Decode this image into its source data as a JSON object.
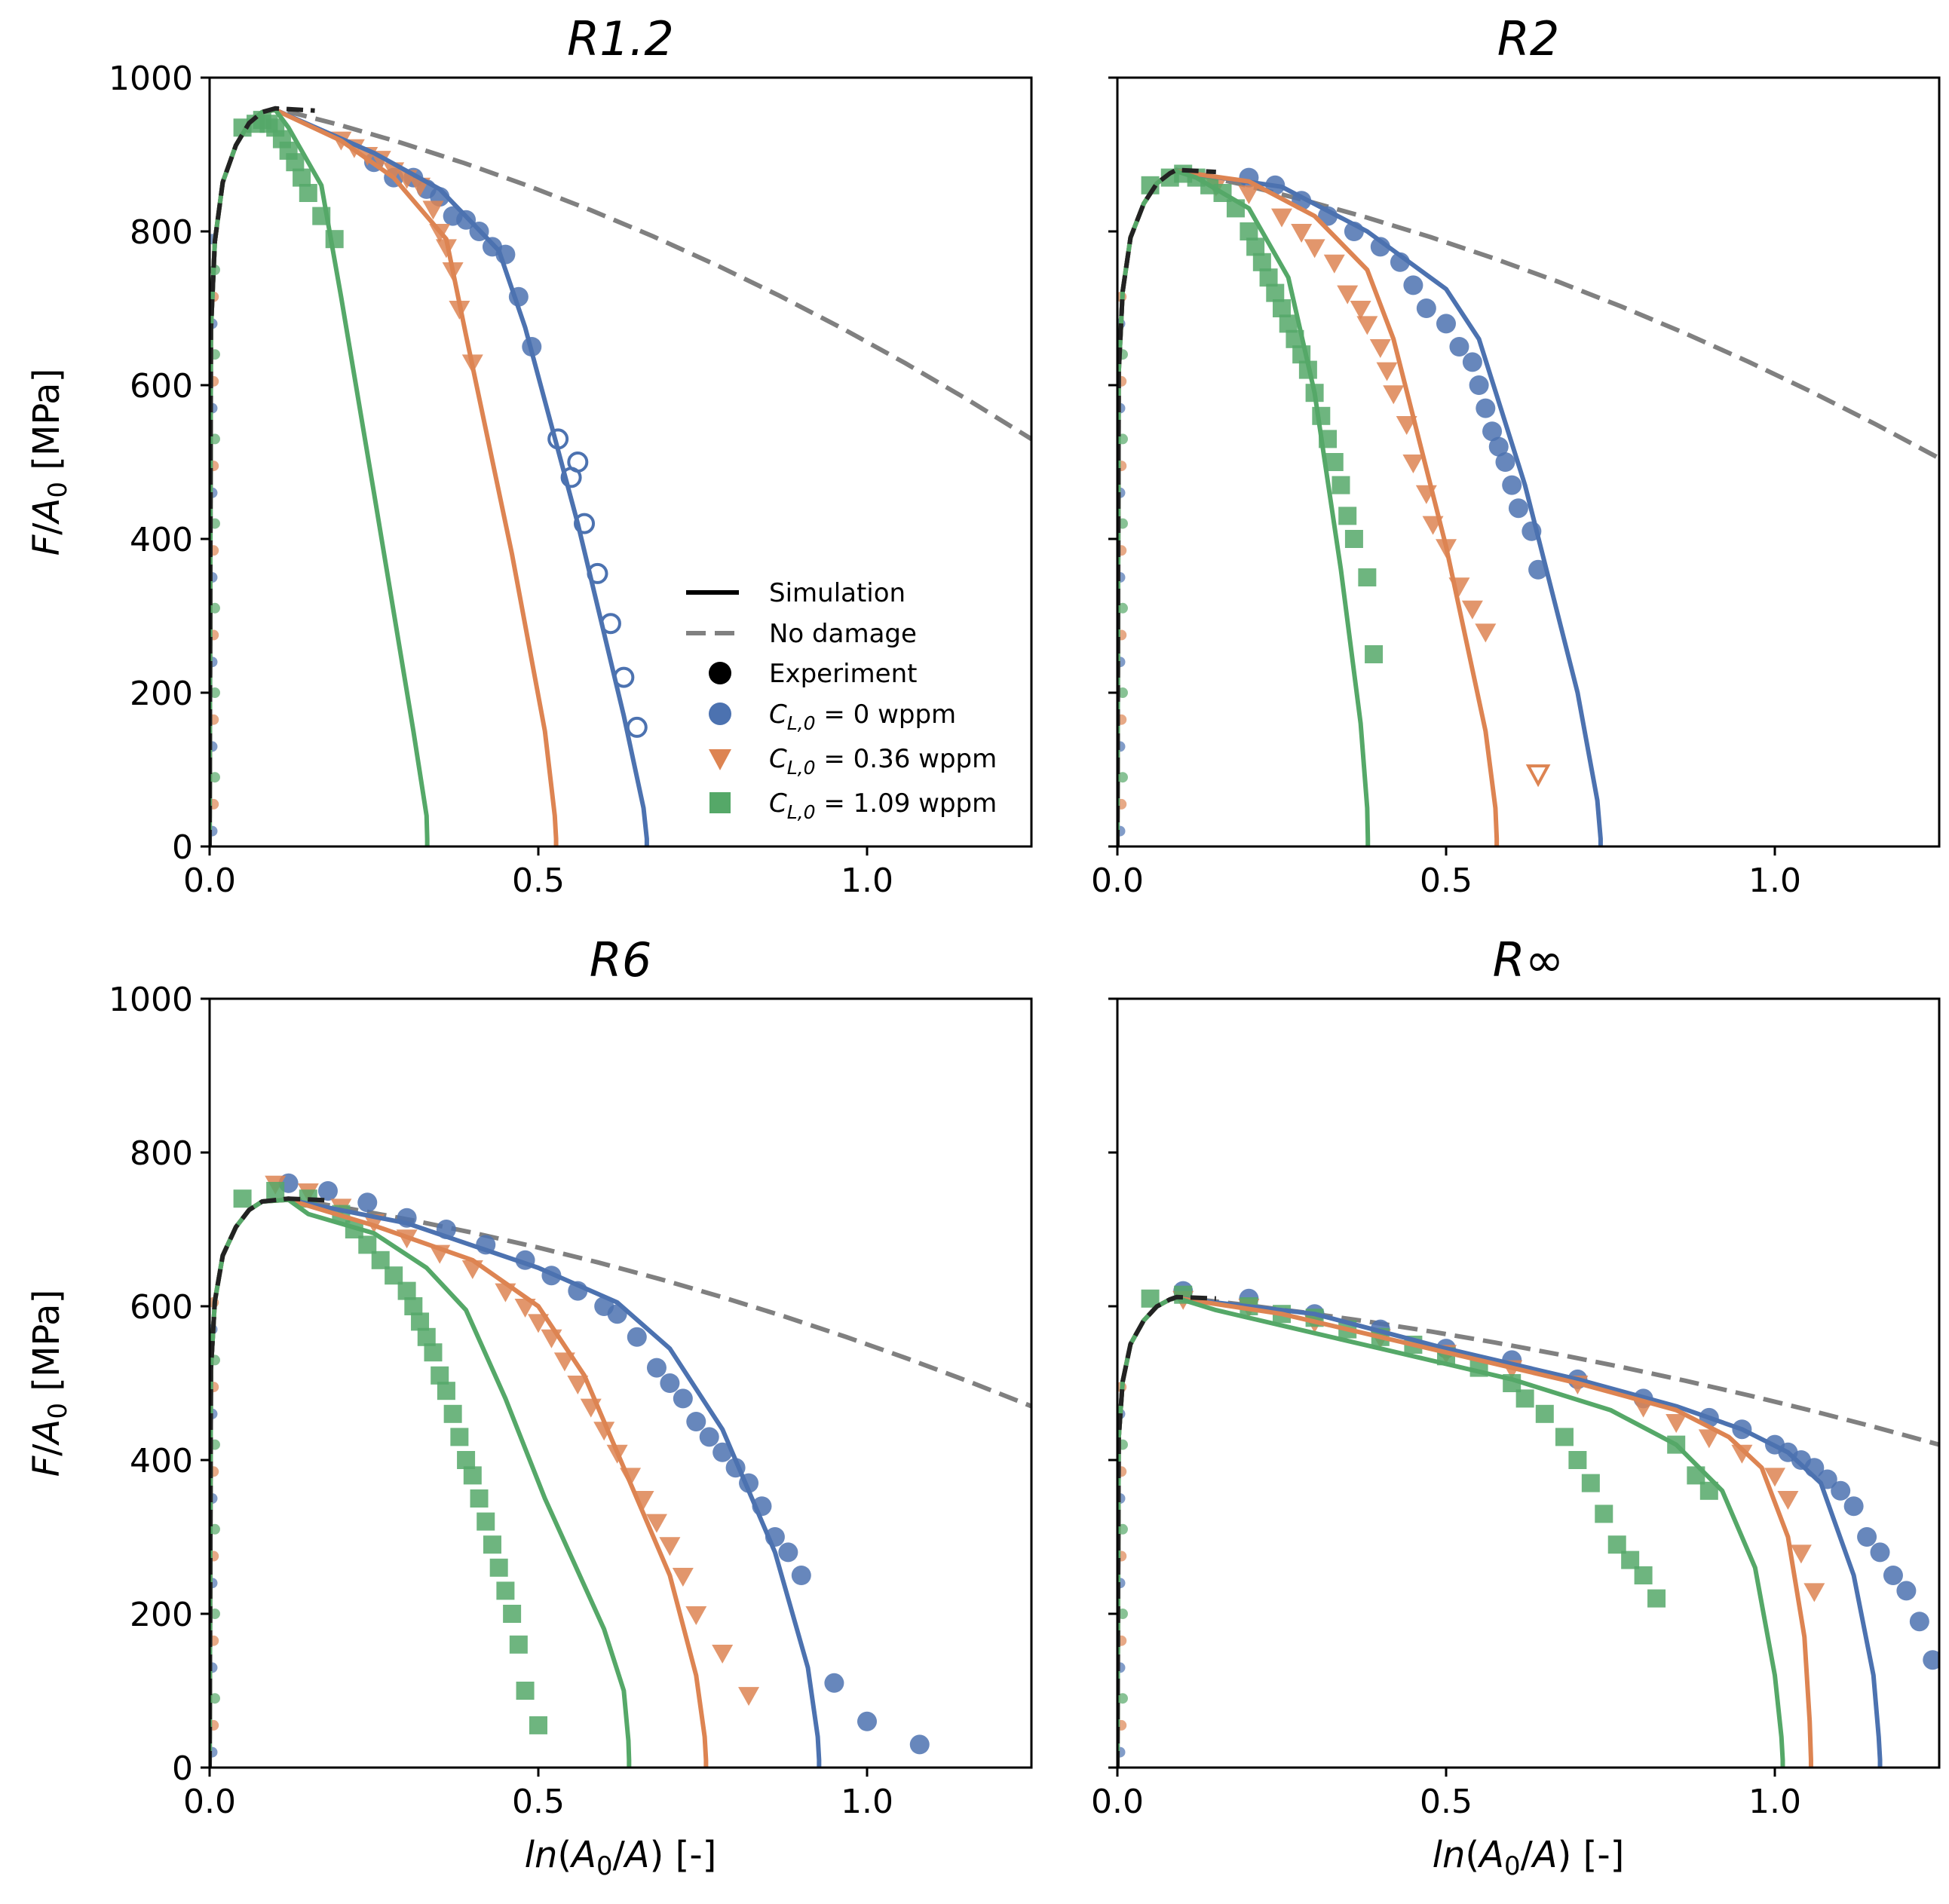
{
  "colors": {
    "blue": "#4C72B0",
    "orange": "#DD8452",
    "green": "#55A868",
    "black": "#000000",
    "no_damage": "#808080"
  },
  "legend": {
    "simulation": "Simulation",
    "no_damage": "No damage",
    "experiment": "Experiment",
    "c0": "C_{L,0} = 0 wppm",
    "c036": "C_{L,0} = 0.36 wppm",
    "c109": "C_{L,0} = 1.09 wppm"
  },
  "chart_data": [
    {
      "type": "line",
      "title": "R1.2",
      "xlabel": "ln(A0/A) [-]",
      "ylabel": "F/A0 [MPa]",
      "xlim": [
        0,
        1.25
      ],
      "ylim": [
        0,
        1000
      ],
      "xticks": [
        "0.0",
        "0.5",
        "1.0"
      ],
      "yticks": [
        "0",
        "200",
        "400",
        "600",
        "800",
        "1000"
      ],
      "show_xlabel": false,
      "show_ylabel": true,
      "show_yticklabels": true,
      "show_legend": true,
      "peak": [
        0.1,
        960
      ],
      "no_damage_end": 530,
      "simulation": [
        {
          "color": "blue",
          "x": [
            0.25,
            0.35,
            0.44,
            0.48,
            0.56,
            0.63,
            0.66,
            0.665
          ],
          "y": [
            902,
            855,
            775,
            675,
            420,
            170,
            50,
            10
          ]
        },
        {
          "color": "orange",
          "x": [
            0.2,
            0.28,
            0.36,
            0.39,
            0.46,
            0.51,
            0.525,
            0.527
          ],
          "y": [
            918,
            870,
            790,
            665,
            380,
            150,
            40,
            10
          ]
        },
        {
          "color": "green",
          "x": [
            0.12,
            0.17,
            0.2,
            0.25,
            0.31,
            0.33,
            0.331
          ],
          "y": [
            935,
            860,
            715,
            460,
            150,
            40,
            10
          ]
        }
      ],
      "experiment": [
        {
          "color": "blue",
          "marker": "circle",
          "x": [
            0.25,
            0.28,
            0.31,
            0.33,
            0.35,
            0.37,
            0.39,
            0.41,
            0.43,
            0.45,
            0.47,
            0.49
          ],
          "y": [
            890,
            870,
            870,
            855,
            845,
            820,
            815,
            800,
            780,
            770,
            715,
            650
          ]
        },
        {
          "color": "blue",
          "marker": "circle-open",
          "x": [
            0.53,
            0.55,
            0.56,
            0.57,
            0.59,
            0.61,
            0.63,
            0.65
          ],
          "y": [
            530,
            480,
            500,
            420,
            355,
            290,
            220,
            155
          ]
        },
        {
          "color": "orange",
          "marker": "triangle",
          "x": [
            0.2,
            0.22,
            0.24,
            0.26,
            0.28,
            0.3,
            0.32,
            0.34,
            0.35,
            0.36,
            0.37,
            0.38,
            0.4
          ],
          "y": [
            920,
            910,
            900,
            895,
            880,
            870,
            860,
            830,
            800,
            780,
            750,
            700,
            630
          ]
        },
        {
          "color": "green",
          "marker": "square",
          "x": [
            0.05,
            0.07,
            0.08,
            0.09,
            0.1,
            0.11,
            0.12,
            0.13,
            0.14,
            0.15,
            0.17,
            0.19
          ],
          "y": [
            935,
            940,
            945,
            940,
            935,
            920,
            905,
            890,
            870,
            850,
            820,
            790
          ]
        }
      ]
    },
    {
      "type": "line",
      "title": "R2",
      "xlabel": "ln(A0/A) [-]",
      "ylabel": "F/A0 [MPa]",
      "xlim": [
        0,
        1.25
      ],
      "ylim": [
        0,
        1000
      ],
      "xticks": [
        "0.0",
        "0.5",
        "1.0"
      ],
      "yticks": [
        "0",
        "200",
        "400",
        "600",
        "800",
        "1000"
      ],
      "show_xlabel": false,
      "show_ylabel": false,
      "show_yticklabels": false,
      "show_legend": false,
      "peak": [
        0.09,
        880
      ],
      "no_damage_end": 505,
      "simulation": [
        {
          "color": "blue",
          "x": [
            0.25,
            0.38,
            0.5,
            0.55,
            0.62,
            0.7,
            0.73,
            0.735
          ],
          "y": [
            858,
            800,
            725,
            660,
            470,
            200,
            60,
            10
          ]
        },
        {
          "color": "orange",
          "x": [
            0.2,
            0.3,
            0.38,
            0.42,
            0.5,
            0.56,
            0.575,
            0.577
          ],
          "y": [
            865,
            820,
            750,
            660,
            390,
            150,
            50,
            10
          ]
        },
        {
          "color": "green",
          "x": [
            0.12,
            0.2,
            0.26,
            0.3,
            0.34,
            0.37,
            0.38,
            0.381
          ],
          "y": [
            870,
            830,
            740,
            590,
            360,
            160,
            50,
            10
          ]
        }
      ],
      "experiment": [
        {
          "color": "blue",
          "marker": "circle",
          "x": [
            0.2,
            0.24,
            0.28,
            0.32,
            0.36,
            0.4,
            0.43,
            0.45,
            0.47,
            0.5,
            0.52,
            0.54,
            0.55,
            0.56,
            0.57,
            0.58,
            0.59,
            0.6,
            0.61,
            0.63,
            0.64
          ],
          "y": [
            870,
            860,
            840,
            820,
            800,
            780,
            760,
            730,
            700,
            680,
            650,
            630,
            600,
            570,
            540,
            520,
            500,
            470,
            440,
            410,
            360
          ]
        },
        {
          "color": "orange",
          "marker": "triangle",
          "x": [
            0.15,
            0.2,
            0.25,
            0.28,
            0.3,
            0.33,
            0.35,
            0.37,
            0.38,
            0.4,
            0.41,
            0.42,
            0.44,
            0.45,
            0.47,
            0.48,
            0.5,
            0.52,
            0.54,
            0.56
          ],
          "y": [
            860,
            850,
            820,
            800,
            780,
            760,
            720,
            700,
            680,
            650,
            620,
            590,
            550,
            500,
            460,
            420,
            390,
            340,
            310,
            280
          ]
        },
        {
          "color": "orange",
          "marker": "triangle-open",
          "x": [
            0.64
          ],
          "y": [
            95
          ]
        },
        {
          "color": "green",
          "marker": "square",
          "x": [
            0.05,
            0.08,
            0.1,
            0.12,
            0.14,
            0.16,
            0.18,
            0.2,
            0.21,
            0.22,
            0.23,
            0.24,
            0.25,
            0.26,
            0.27,
            0.28,
            0.29,
            0.3,
            0.31,
            0.32,
            0.33,
            0.34,
            0.35,
            0.36,
            0.38,
            0.39
          ],
          "y": [
            860,
            870,
            875,
            870,
            860,
            850,
            830,
            800,
            780,
            760,
            740,
            720,
            700,
            680,
            660,
            640,
            620,
            590,
            560,
            530,
            500,
            470,
            430,
            400,
            350,
            250
          ]
        }
      ]
    },
    {
      "type": "line",
      "title": "R6",
      "xlabel": "ln(A0/A) [-]",
      "ylabel": "F/A0 [MPa]",
      "xlim": [
        0,
        1.25
      ],
      "ylim": [
        0,
        1000
      ],
      "xticks": [
        "0.0",
        "0.5",
        "1.0"
      ],
      "yticks": [
        "0",
        "200",
        "400",
        "600",
        "800",
        "1000"
      ],
      "show_xlabel": true,
      "show_ylabel": true,
      "show_yticklabels": true,
      "show_legend": false,
      "peak": [
        0.12,
        740
      ],
      "no_damage_end": 470,
      "simulation": [
        {
          "color": "blue",
          "x": [
            0.3,
            0.5,
            0.62,
            0.7,
            0.78,
            0.86,
            0.91,
            0.925,
            0.927
          ],
          "y": [
            708,
            650,
            605,
            545,
            440,
            280,
            130,
            40,
            10
          ]
        },
        {
          "color": "orange",
          "x": [
            0.25,
            0.4,
            0.5,
            0.57,
            0.63,
            0.7,
            0.74,
            0.753,
            0.755
          ],
          "y": [
            705,
            660,
            600,
            510,
            390,
            250,
            120,
            40,
            10
          ]
        },
        {
          "color": "green",
          "x": [
            0.15,
            0.25,
            0.33,
            0.39,
            0.45,
            0.51,
            0.6,
            0.63,
            0.637,
            0.638
          ],
          "y": [
            720,
            695,
            650,
            595,
            480,
            350,
            180,
            100,
            35,
            10
          ]
        }
      ],
      "experiment": [
        {
          "color": "blue",
          "marker": "circle",
          "x": [
            0.12,
            0.18,
            0.24,
            0.3,
            0.36,
            0.42,
            0.48,
            0.52,
            0.56,
            0.6,
            0.62,
            0.65,
            0.68,
            0.7,
            0.72,
            0.74,
            0.76,
            0.78,
            0.8,
            0.82,
            0.84,
            0.86,
            0.88,
            0.9,
            0.95,
            1.0,
            1.08
          ],
          "y": [
            760,
            750,
            735,
            715,
            700,
            680,
            660,
            640,
            620,
            600,
            590,
            560,
            520,
            500,
            480,
            450,
            430,
            410,
            390,
            370,
            340,
            300,
            280,
            250,
            110,
            60,
            30
          ]
        },
        {
          "color": "orange",
          "marker": "triangle",
          "x": [
            0.1,
            0.15,
            0.2,
            0.25,
            0.3,
            0.35,
            0.4,
            0.45,
            0.48,
            0.5,
            0.52,
            0.54,
            0.56,
            0.58,
            0.6,
            0.62,
            0.64,
            0.66,
            0.68,
            0.7,
            0.72,
            0.74,
            0.78,
            0.82
          ],
          "y": [
            760,
            750,
            730,
            710,
            690,
            670,
            650,
            620,
            600,
            580,
            560,
            530,
            500,
            470,
            440,
            410,
            380,
            350,
            320,
            290,
            250,
            200,
            150,
            95
          ]
        },
        {
          "color": "green",
          "marker": "square",
          "x": [
            0.05,
            0.1,
            0.15,
            0.2,
            0.22,
            0.24,
            0.26,
            0.28,
            0.3,
            0.31,
            0.32,
            0.33,
            0.34,
            0.35,
            0.36,
            0.37,
            0.38,
            0.39,
            0.4,
            0.41,
            0.42,
            0.43,
            0.44,
            0.45,
            0.46,
            0.47,
            0.48,
            0.5
          ],
          "y": [
            740,
            750,
            740,
            720,
            700,
            680,
            660,
            640,
            620,
            600,
            580,
            560,
            540,
            510,
            490,
            460,
            430,
            400,
            380,
            350,
            320,
            290,
            260,
            230,
            200,
            160,
            100,
            55
          ]
        }
      ]
    },
    {
      "type": "line",
      "title": "R∞",
      "xlabel": "ln(A0/A) [-]",
      "ylabel": "F/A0 [MPa]",
      "xlim": [
        0,
        1.25
      ],
      "ylim": [
        0,
        1000
      ],
      "xticks": [
        "0.0",
        "0.5",
        "1.0"
      ],
      "yticks": [
        "0",
        "200",
        "400",
        "600",
        "800",
        "1000"
      ],
      "show_xlabel": true,
      "show_ylabel": false,
      "show_yticklabels": false,
      "show_legend": false,
      "peak": [
        0.09,
        612
      ],
      "no_damage_end": 420,
      "simulation": [
        {
          "color": "blue",
          "x": [
            0.3,
            0.5,
            0.7,
            0.85,
            0.95,
            1.02,
            1.07,
            1.12,
            1.15,
            1.158,
            1.16
          ],
          "y": [
            590,
            545,
            505,
            470,
            440,
            410,
            370,
            250,
            120,
            40,
            10
          ]
        },
        {
          "color": "orange",
          "x": [
            0.25,
            0.5,
            0.7,
            0.85,
            0.93,
            0.98,
            1.02,
            1.045,
            1.053,
            1.055
          ],
          "y": [
            590,
            540,
            500,
            465,
            430,
            390,
            300,
            170,
            60,
            10
          ]
        },
        {
          "color": "green",
          "x": [
            0.15,
            0.4,
            0.6,
            0.75,
            0.85,
            0.92,
            0.97,
            1.0,
            1.01,
            1.012
          ],
          "y": [
            595,
            545,
            505,
            465,
            420,
            360,
            260,
            120,
            40,
            10
          ]
        }
      ],
      "experiment": [
        {
          "color": "blue",
          "marker": "circle",
          "x": [
            0.1,
            0.2,
            0.3,
            0.4,
            0.5,
            0.6,
            0.7,
            0.8,
            0.9,
            0.95,
            1.0,
            1.02,
            1.04,
            1.06,
            1.08,
            1.1,
            1.12,
            1.14,
            1.16,
            1.18,
            1.2,
            1.22,
            1.24
          ],
          "y": [
            620,
            610,
            590,
            570,
            545,
            530,
            505,
            480,
            455,
            440,
            420,
            410,
            400,
            390,
            375,
            360,
            340,
            300,
            280,
            250,
            230,
            190,
            140
          ]
        },
        {
          "color": "orange",
          "marker": "triangle",
          "x": [
            0.1,
            0.2,
            0.3,
            0.4,
            0.5,
            0.6,
            0.7,
            0.8,
            0.85,
            0.9,
            0.95,
            1.0,
            1.02,
            1.04,
            1.06
          ],
          "y": [
            610,
            600,
            580,
            560,
            540,
            520,
            500,
            470,
            450,
            430,
            410,
            380,
            350,
            280,
            230
          ]
        },
        {
          "color": "green",
          "marker": "square",
          "x": [
            0.05,
            0.1,
            0.2,
            0.25,
            0.3,
            0.35,
            0.4,
            0.45,
            0.5,
            0.55,
            0.6,
            0.62,
            0.65,
            0.68,
            0.7,
            0.72,
            0.74,
            0.76,
            0.78,
            0.8,
            0.82,
            0.85,
            0.88,
            0.9
          ],
          "y": [
            610,
            615,
            600,
            590,
            585,
            570,
            560,
            550,
            535,
            520,
            500,
            480,
            460,
            430,
            400,
            370,
            330,
            290,
            270,
            250,
            220,
            420,
            380,
            360
          ]
        }
      ]
    }
  ]
}
